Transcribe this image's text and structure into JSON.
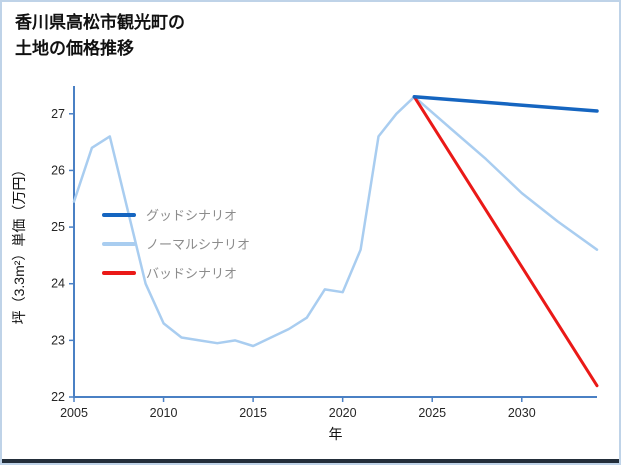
{
  "title": {
    "text": "香川県高松市観光町の\n土地の価格推移"
  },
  "chart_data": {
    "type": "line",
    "title": "香川県高松市観光町の土地の価格推移",
    "xlabel": "年",
    "ylabel": "坪（3.3m²）単価（万円）",
    "xlim": [
      2005,
      2034.2
    ],
    "ylim": [
      22,
      27.42
    ],
    "xticks": [
      2005,
      2010,
      2015,
      2020,
      2025,
      2030
    ],
    "yticks": [
      22,
      23,
      24,
      25,
      26,
      27
    ],
    "grid": false,
    "legend_position": "center-left",
    "axis_color": "#4a80c4",
    "series": [
      {
        "name": "グッドシナリオ",
        "color": "#1565c0",
        "width": 3.5,
        "zorder": 3,
        "x": [
          2024,
          2034.2
        ],
        "y": [
          27.3,
          27.05
        ]
      },
      {
        "name": "ノーマルシナリオ",
        "color": "#a9cdf0",
        "width": 2.5,
        "zorder": 1,
        "x": [
          2005,
          2006,
          2007,
          2008,
          2009,
          2010,
          2011,
          2012,
          2013,
          2014,
          2015,
          2016,
          2017,
          2018,
          2019,
          2020,
          2021,
          2022,
          2023,
          2024,
          2026,
          2028,
          2030,
          2032,
          2034.2
        ],
        "y": [
          25.45,
          26.4,
          26.6,
          25.3,
          24.0,
          23.3,
          23.05,
          23.0,
          22.95,
          23.0,
          22.9,
          23.05,
          23.2,
          23.4,
          23.9,
          23.85,
          24.6,
          26.6,
          27.0,
          27.3,
          26.75,
          26.2,
          25.6,
          25.1,
          24.6
        ]
      },
      {
        "name": "バッドシナリオ",
        "color": "#ea1917",
        "width": 3,
        "zorder": 2,
        "x": [
          2024,
          2034.2
        ],
        "y": [
          27.3,
          22.2
        ]
      }
    ]
  }
}
